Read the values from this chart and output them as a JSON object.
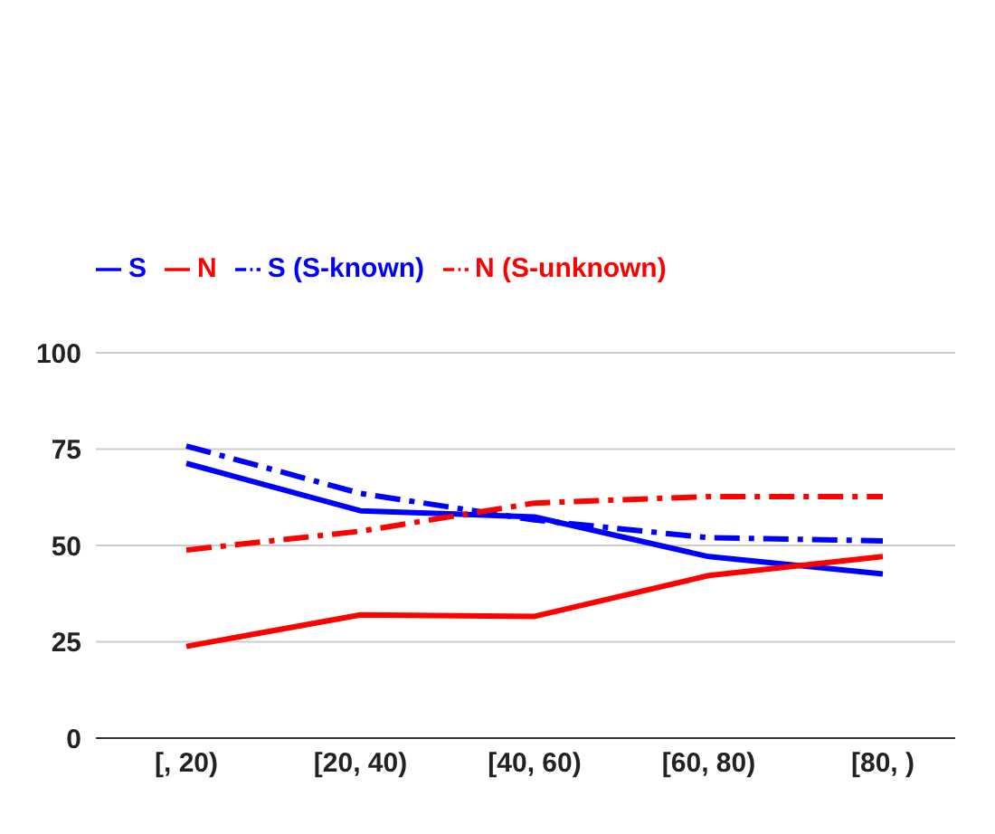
{
  "chart_data": {
    "type": "line",
    "categories": [
      "[, 20)",
      "[20, 40)",
      "[40, 60)",
      "[60, 80)",
      "[80, )"
    ],
    "series": [
      {
        "name": "S",
        "color": "#0000ff",
        "values": [
          71.3,
          59,
          57.4,
          47.1,
          42.6
        ],
        "line_style": "solid"
      },
      {
        "name": "N",
        "color": "#ff0000",
        "values": [
          23.8,
          32,
          31.6,
          42.2,
          47.1
        ],
        "line_style": "solid"
      },
      {
        "name": "S (S-known)",
        "color": "#0000ff",
        "values": [
          75.8,
          63.5,
          56.6,
          52,
          51.2
        ],
        "line_style": "dashed"
      },
      {
        "name": "N (S-unknown)",
        "color": "#ff0000",
        "values": [
          48.8,
          53.7,
          61,
          62.7,
          62.7
        ],
        "line_style": "dashed"
      }
    ],
    "ylim": [
      0,
      100
    ],
    "yticks": [
      0,
      25,
      50,
      75,
      100
    ],
    "grid": "y",
    "legend": "top left",
    "marker": "none"
  }
}
